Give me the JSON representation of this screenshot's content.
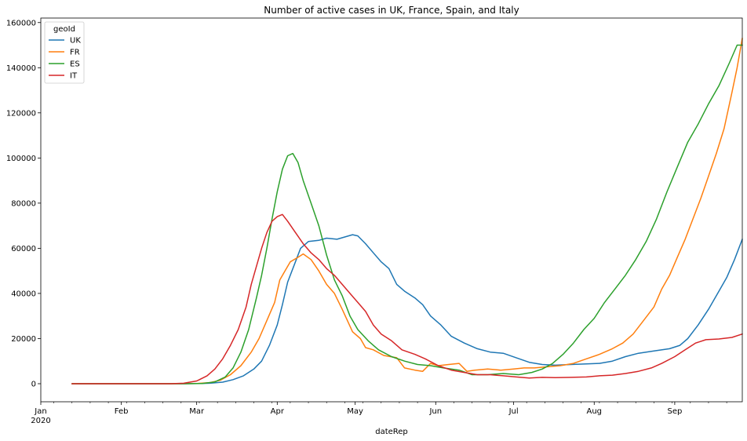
{
  "chart_data": {
    "type": "line",
    "title": "Number of active cases in UK, France, Spain, and Italy",
    "xlabel": "dateRep",
    "ylabel": "",
    "x_ticks": [
      {
        "date": "2020-01-01",
        "label": "Jan",
        "sublabel": "2020"
      },
      {
        "date": "2020-02-01",
        "label": "Feb"
      },
      {
        "date": "2020-03-01",
        "label": "Mar"
      },
      {
        "date": "2020-04-01",
        "label": "Apr"
      },
      {
        "date": "2020-05-01",
        "label": "May"
      },
      {
        "date": "2020-06-01",
        "label": "Jun"
      },
      {
        "date": "2020-07-01",
        "label": "Jul"
      },
      {
        "date": "2020-08-01",
        "label": "Aug"
      },
      {
        "date": "2020-09-01",
        "label": "Sep"
      }
    ],
    "xlim": [
      "2020-01-01",
      "2020-09-27"
    ],
    "ylim": [
      -8000,
      162000
    ],
    "y_ticks": [
      0,
      20000,
      40000,
      60000,
      80000,
      100000,
      120000,
      140000,
      160000
    ],
    "legend": {
      "title": "geoId",
      "placement": "top-left"
    },
    "series": [
      {
        "name": "UK",
        "color": "#1f77b4",
        "points": [
          [
            "2020-01-13",
            0
          ],
          [
            "2020-02-15",
            0
          ],
          [
            "2020-02-25",
            0
          ],
          [
            "2020-03-01",
            50
          ],
          [
            "2020-03-06",
            200
          ],
          [
            "2020-03-11",
            700
          ],
          [
            "2020-03-15",
            1800
          ],
          [
            "2020-03-19",
            3500
          ],
          [
            "2020-03-23",
            6500
          ],
          [
            "2020-03-26",
            10000
          ],
          [
            "2020-03-29",
            17000
          ],
          [
            "2020-04-01",
            26000
          ],
          [
            "2020-04-03",
            35000
          ],
          [
            "2020-04-05",
            45000
          ],
          [
            "2020-04-08",
            54000
          ],
          [
            "2020-04-10",
            60000
          ],
          [
            "2020-04-13",
            63000
          ],
          [
            "2020-04-17",
            63500
          ],
          [
            "2020-04-20",
            64500
          ],
          [
            "2020-04-24",
            64000
          ],
          [
            "2020-04-27",
            65000
          ],
          [
            "2020-04-30",
            66000
          ],
          [
            "2020-05-02",
            65500
          ],
          [
            "2020-05-05",
            62000
          ],
          [
            "2020-05-08",
            58000
          ],
          [
            "2020-05-11",
            54000
          ],
          [
            "2020-05-14",
            51000
          ],
          [
            "2020-05-17",
            44000
          ],
          [
            "2020-05-20",
            41000
          ],
          [
            "2020-05-24",
            38000
          ],
          [
            "2020-05-27",
            35000
          ],
          [
            "2020-05-30",
            30000
          ],
          [
            "2020-06-03",
            26000
          ],
          [
            "2020-06-07",
            21000
          ],
          [
            "2020-06-12",
            18000
          ],
          [
            "2020-06-17",
            15500
          ],
          [
            "2020-06-22",
            14000
          ],
          [
            "2020-06-27",
            13500
          ],
          [
            "2020-07-02",
            11500
          ],
          [
            "2020-07-07",
            9500
          ],
          [
            "2020-07-12",
            8500
          ],
          [
            "2020-07-17",
            8200
          ],
          [
            "2020-07-23",
            8500
          ],
          [
            "2020-07-29",
            8800
          ],
          [
            "2020-08-03",
            9000
          ],
          [
            "2020-08-08",
            10000
          ],
          [
            "2020-08-13",
            12000
          ],
          [
            "2020-08-18",
            13500
          ],
          [
            "2020-08-24",
            14500
          ],
          [
            "2020-08-30",
            15500
          ],
          [
            "2020-09-03",
            17000
          ],
          [
            "2020-09-06",
            20000
          ],
          [
            "2020-09-10",
            26000
          ],
          [
            "2020-09-14",
            33000
          ],
          [
            "2020-09-18",
            41000
          ],
          [
            "2020-09-21",
            47000
          ],
          [
            "2020-09-24",
            55000
          ],
          [
            "2020-09-27",
            64000
          ]
        ]
      },
      {
        "name": "FR",
        "color": "#ff7f0e",
        "points": [
          [
            "2020-01-13",
            0
          ],
          [
            "2020-02-20",
            0
          ],
          [
            "2020-03-01",
            100
          ],
          [
            "2020-03-06",
            500
          ],
          [
            "2020-03-10",
            1500
          ],
          [
            "2020-03-14",
            4000
          ],
          [
            "2020-03-18",
            8000
          ],
          [
            "2020-03-22",
            14000
          ],
          [
            "2020-03-25",
            20000
          ],
          [
            "2020-03-28",
            28000
          ],
          [
            "2020-03-31",
            36000
          ],
          [
            "2020-04-02",
            46000
          ],
          [
            "2020-04-04",
            50000
          ],
          [
            "2020-04-06",
            54000
          ],
          [
            "2020-04-09",
            56000
          ],
          [
            "2020-04-11",
            57500
          ],
          [
            "2020-04-14",
            55000
          ],
          [
            "2020-04-17",
            50000
          ],
          [
            "2020-04-20",
            44000
          ],
          [
            "2020-04-23",
            40000
          ],
          [
            "2020-04-26",
            33000
          ],
          [
            "2020-04-28",
            28000
          ],
          [
            "2020-04-30",
            23000
          ],
          [
            "2020-05-03",
            20000
          ],
          [
            "2020-05-05",
            16000
          ],
          [
            "2020-05-08",
            15000
          ],
          [
            "2020-05-12",
            12500
          ],
          [
            "2020-05-17",
            11500
          ],
          [
            "2020-05-20",
            7000
          ],
          [
            "2020-05-24",
            6000
          ],
          [
            "2020-05-27",
            5500
          ],
          [
            "2020-05-30",
            9000
          ],
          [
            "2020-06-02",
            8000
          ],
          [
            "2020-06-06",
            8500
          ],
          [
            "2020-06-10",
            9000
          ],
          [
            "2020-06-13",
            5500
          ],
          [
            "2020-06-16",
            6000
          ],
          [
            "2020-06-21",
            6500
          ],
          [
            "2020-06-26",
            6000
          ],
          [
            "2020-07-01",
            6500
          ],
          [
            "2020-07-05",
            7000
          ],
          [
            "2020-07-09",
            7000
          ],
          [
            "2020-07-14",
            7500
          ],
          [
            "2020-07-19",
            8000
          ],
          [
            "2020-07-24",
            9000
          ],
          [
            "2020-07-29",
            11000
          ],
          [
            "2020-08-03",
            13000
          ],
          [
            "2020-08-08",
            15500
          ],
          [
            "2020-08-12",
            18000
          ],
          [
            "2020-08-16",
            22000
          ],
          [
            "2020-08-20",
            28000
          ],
          [
            "2020-08-24",
            34000
          ],
          [
            "2020-08-27",
            42000
          ],
          [
            "2020-08-30",
            48000
          ],
          [
            "2020-09-02",
            56000
          ],
          [
            "2020-09-05",
            64000
          ],
          [
            "2020-09-08",
            73000
          ],
          [
            "2020-09-11",
            82000
          ],
          [
            "2020-09-14",
            92000
          ],
          [
            "2020-09-17",
            102000
          ],
          [
            "2020-09-20",
            113000
          ],
          [
            "2020-09-23",
            129000
          ],
          [
            "2020-09-25",
            140000
          ],
          [
            "2020-09-27",
            153000
          ]
        ]
      },
      {
        "name": "ES",
        "color": "#2ca02c",
        "points": [
          [
            "2020-01-13",
            0
          ],
          [
            "2020-02-25",
            0
          ],
          [
            "2020-03-03",
            100
          ],
          [
            "2020-03-08",
            800
          ],
          [
            "2020-03-12",
            3000
          ],
          [
            "2020-03-15",
            7000
          ],
          [
            "2020-03-18",
            14000
          ],
          [
            "2020-03-21",
            24000
          ],
          [
            "2020-03-24",
            38000
          ],
          [
            "2020-03-26",
            48000
          ],
          [
            "2020-03-28",
            60000
          ],
          [
            "2020-03-30",
            73000
          ],
          [
            "2020-04-01",
            85000
          ],
          [
            "2020-04-03",
            95000
          ],
          [
            "2020-04-05",
            101000
          ],
          [
            "2020-04-07",
            102000
          ],
          [
            "2020-04-09",
            98000
          ],
          [
            "2020-04-11",
            90000
          ],
          [
            "2020-04-14",
            80000
          ],
          [
            "2020-04-17",
            70000
          ],
          [
            "2020-04-20",
            57000
          ],
          [
            "2020-04-23",
            46000
          ],
          [
            "2020-04-26",
            39000
          ],
          [
            "2020-04-29",
            30000
          ],
          [
            "2020-05-02",
            24000
          ],
          [
            "2020-05-06",
            19000
          ],
          [
            "2020-05-10",
            15000
          ],
          [
            "2020-05-15",
            12000
          ],
          [
            "2020-05-20",
            10000
          ],
          [
            "2020-05-25",
            8500
          ],
          [
            "2020-05-30",
            8000
          ],
          [
            "2020-06-04",
            7000
          ],
          [
            "2020-06-10",
            6000
          ],
          [
            "2020-06-15",
            4000
          ],
          [
            "2020-06-21",
            4000
          ],
          [
            "2020-06-27",
            4500
          ],
          [
            "2020-07-03",
            4000
          ],
          [
            "2020-07-08",
            5000
          ],
          [
            "2020-07-12",
            6500
          ],
          [
            "2020-07-16",
            9000
          ],
          [
            "2020-07-20",
            13000
          ],
          [
            "2020-07-24",
            18000
          ],
          [
            "2020-07-28",
            24000
          ],
          [
            "2020-08-01",
            29000
          ],
          [
            "2020-08-05",
            36000
          ],
          [
            "2020-08-09",
            42000
          ],
          [
            "2020-08-13",
            48000
          ],
          [
            "2020-08-17",
            55000
          ],
          [
            "2020-08-21",
            63000
          ],
          [
            "2020-08-25",
            73000
          ],
          [
            "2020-08-29",
            85000
          ],
          [
            "2020-09-02",
            96000
          ],
          [
            "2020-09-06",
            107000
          ],
          [
            "2020-09-10",
            115000
          ],
          [
            "2020-09-14",
            124000
          ],
          [
            "2020-09-18",
            132000
          ],
          [
            "2020-09-22",
            142000
          ],
          [
            "2020-09-25",
            150000
          ],
          [
            "2020-09-27",
            150000
          ]
        ]
      },
      {
        "name": "IT",
        "color": "#d62728",
        "points": [
          [
            "2020-01-13",
            0
          ],
          [
            "2020-02-20",
            0
          ],
          [
            "2020-02-25",
            200
          ],
          [
            "2020-03-01",
            1200
          ],
          [
            "2020-03-05",
            3500
          ],
          [
            "2020-03-08",
            6500
          ],
          [
            "2020-03-11",
            11000
          ],
          [
            "2020-03-14",
            17000
          ],
          [
            "2020-03-17",
            24000
          ],
          [
            "2020-03-20",
            34000
          ],
          [
            "2020-03-22",
            44000
          ],
          [
            "2020-03-24",
            52000
          ],
          [
            "2020-03-26",
            60000
          ],
          [
            "2020-03-28",
            67000
          ],
          [
            "2020-03-30",
            72000
          ],
          [
            "2020-04-01",
            74000
          ],
          [
            "2020-04-03",
            75000
          ],
          [
            "2020-04-05",
            72000
          ],
          [
            "2020-04-08",
            67000
          ],
          [
            "2020-04-11",
            62000
          ],
          [
            "2020-04-14",
            58000
          ],
          [
            "2020-04-17",
            55000
          ],
          [
            "2020-04-20",
            51000
          ],
          [
            "2020-04-23",
            48000
          ],
          [
            "2020-04-26",
            44000
          ],
          [
            "2020-04-29",
            40000
          ],
          [
            "2020-05-02",
            36000
          ],
          [
            "2020-05-05",
            32000
          ],
          [
            "2020-05-08",
            26000
          ],
          [
            "2020-05-11",
            22000
          ],
          [
            "2020-05-15",
            19000
          ],
          [
            "2020-05-19",
            15000
          ],
          [
            "2020-05-24",
            13000
          ],
          [
            "2020-05-28",
            11000
          ],
          [
            "2020-06-02",
            8000
          ],
          [
            "2020-06-07",
            6000
          ],
          [
            "2020-06-12",
            5000
          ],
          [
            "2020-06-17",
            4000
          ],
          [
            "2020-06-22",
            4000
          ],
          [
            "2020-06-27",
            3500
          ],
          [
            "2020-07-02",
            3000
          ],
          [
            "2020-07-07",
            2500
          ],
          [
            "2020-07-12",
            2800
          ],
          [
            "2020-07-17",
            2700
          ],
          [
            "2020-07-23",
            2800
          ],
          [
            "2020-07-29",
            3000
          ],
          [
            "2020-08-03",
            3500
          ],
          [
            "2020-08-08",
            3800
          ],
          [
            "2020-08-13",
            4500
          ],
          [
            "2020-08-18",
            5500
          ],
          [
            "2020-08-23",
            7000
          ],
          [
            "2020-08-27",
            9000
          ],
          [
            "2020-09-01",
            12000
          ],
          [
            "2020-09-05",
            15000
          ],
          [
            "2020-09-09",
            18000
          ],
          [
            "2020-09-13",
            19500
          ],
          [
            "2020-09-18",
            19800
          ],
          [
            "2020-09-23",
            20500
          ],
          [
            "2020-09-27",
            22000
          ]
        ]
      }
    ]
  }
}
